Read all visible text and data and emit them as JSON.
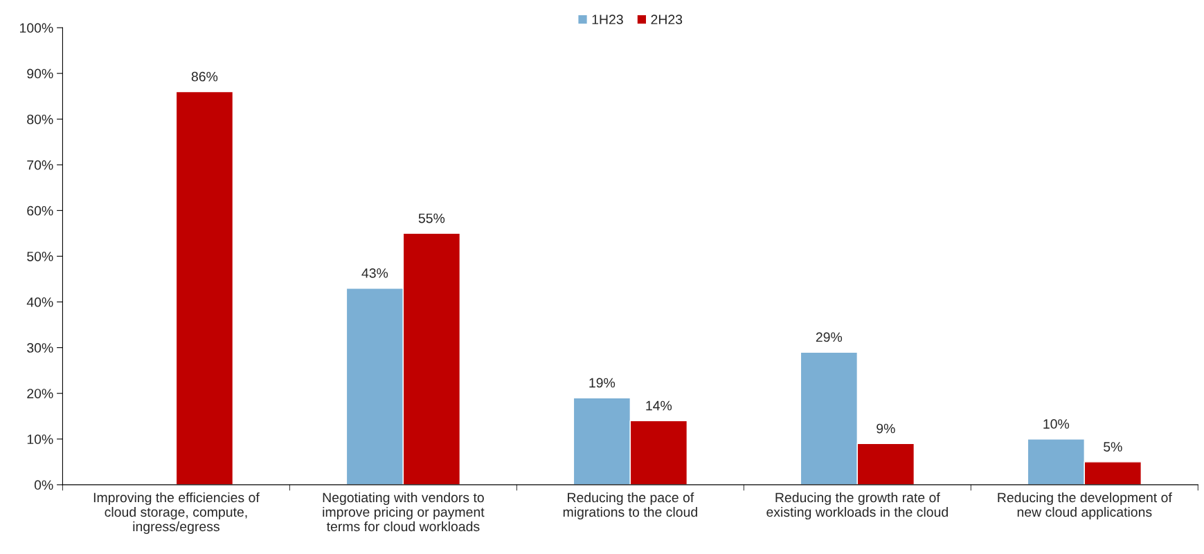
{
  "chart_data": {
    "type": "bar",
    "categories": [
      "Improving the efficiencies of\ncloud storage, compute,\ningress/egress",
      "Negotiating with vendors to\nimprove pricing or payment\nterms for cloud workloads",
      "Reducing the pace of\nmigrations to the cloud",
      "Reducing the growth rate of\nexisting workloads in the cloud",
      "Reducing the development of\nnew cloud applications"
    ],
    "series": [
      {
        "name": "1H23",
        "color": "#7bafd4",
        "values": [
          null,
          43,
          19,
          29,
          10
        ],
        "value_labels": [
          null,
          "43%",
          "19%",
          "29%",
          "10%"
        ]
      },
      {
        "name": "2H23",
        "color": "#c00000",
        "values": [
          86,
          55,
          14,
          9,
          5
        ],
        "value_labels": [
          "86%",
          "55%",
          "14%",
          "9%",
          "5%"
        ]
      }
    ],
    "ylim": [
      0,
      100
    ],
    "yticks": [
      {
        "value": 0,
        "label": "0%"
      },
      {
        "value": 10,
        "label": "10%"
      },
      {
        "value": 20,
        "label": "20%"
      },
      {
        "value": 30,
        "label": "30%"
      },
      {
        "value": 40,
        "label": "40%"
      },
      {
        "value": 50,
        "label": "50%"
      },
      {
        "value": 60,
        "label": "60%"
      },
      {
        "value": 70,
        "label": "70%"
      },
      {
        "value": 80,
        "label": "80%"
      },
      {
        "value": 90,
        "label": "90%"
      },
      {
        "value": 100,
        "label": "100%"
      }
    ],
    "grid": false,
    "legend": "top"
  }
}
